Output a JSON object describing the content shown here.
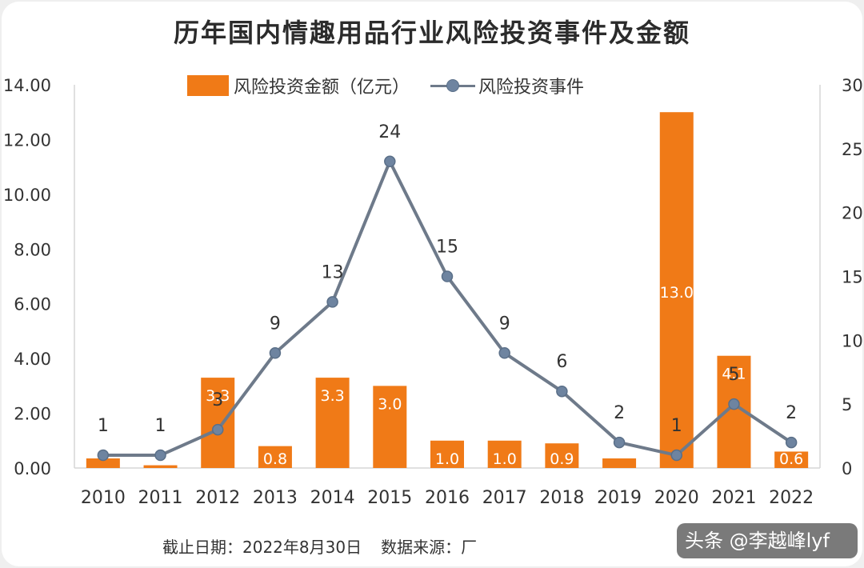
{
  "title": "历年国内情趣用品行业风险投资事件及金额",
  "legend": {
    "bar_label": "风险投资金额（亿元）",
    "line_label": "风险投资事件"
  },
  "footer": {
    "date_text": "截止日期：2022年8月30日",
    "source_text": "数据来源：厂"
  },
  "watermark": "头条 @李越峰lyf",
  "colors": {
    "bar": "#f07a17",
    "line": "#6e7a8a",
    "marker": "#6e84a0"
  },
  "chart_data": {
    "type": "bar",
    "categories": [
      "2010",
      "2011",
      "2012",
      "2013",
      "2014",
      "2015",
      "2016",
      "2017",
      "2018",
      "2019",
      "2020",
      "2021",
      "2022"
    ],
    "series": [
      {
        "name": "风险投资金额（亿元）",
        "type": "bar",
        "axis": "left",
        "values": [
          0.35,
          0.1,
          3.3,
          0.8,
          3.3,
          3.0,
          1.0,
          1.0,
          0.9,
          0.35,
          13.0,
          4.1,
          0.6
        ],
        "labels": [
          "",
          "",
          "3.3",
          "0.8",
          "3.3",
          "3.0",
          "1.0",
          "1.0",
          "0.9",
          "",
          "13.0",
          "4.1",
          "0.6"
        ]
      },
      {
        "name": "风险投资事件",
        "type": "line",
        "axis": "right",
        "values": [
          1,
          1,
          3,
          9,
          13,
          24,
          15,
          9,
          6,
          2,
          1,
          5,
          2
        ],
        "labels": [
          "1",
          "1",
          "3",
          "9",
          "13",
          "24",
          "15",
          "9",
          "6",
          "2",
          "1",
          "5",
          "2"
        ]
      }
    ],
    "left_axis": {
      "ylim": [
        0,
        14
      ],
      "ticks": [
        "0.00",
        "2.00",
        "4.00",
        "6.00",
        "8.00",
        "10.00",
        "12.00",
        "14.00"
      ]
    },
    "right_axis": {
      "ylim": [
        0,
        30
      ],
      "ticks": [
        "0",
        "5",
        "10",
        "15",
        "20",
        "25",
        "30"
      ]
    },
    "grid": false,
    "legend_position": "top"
  }
}
